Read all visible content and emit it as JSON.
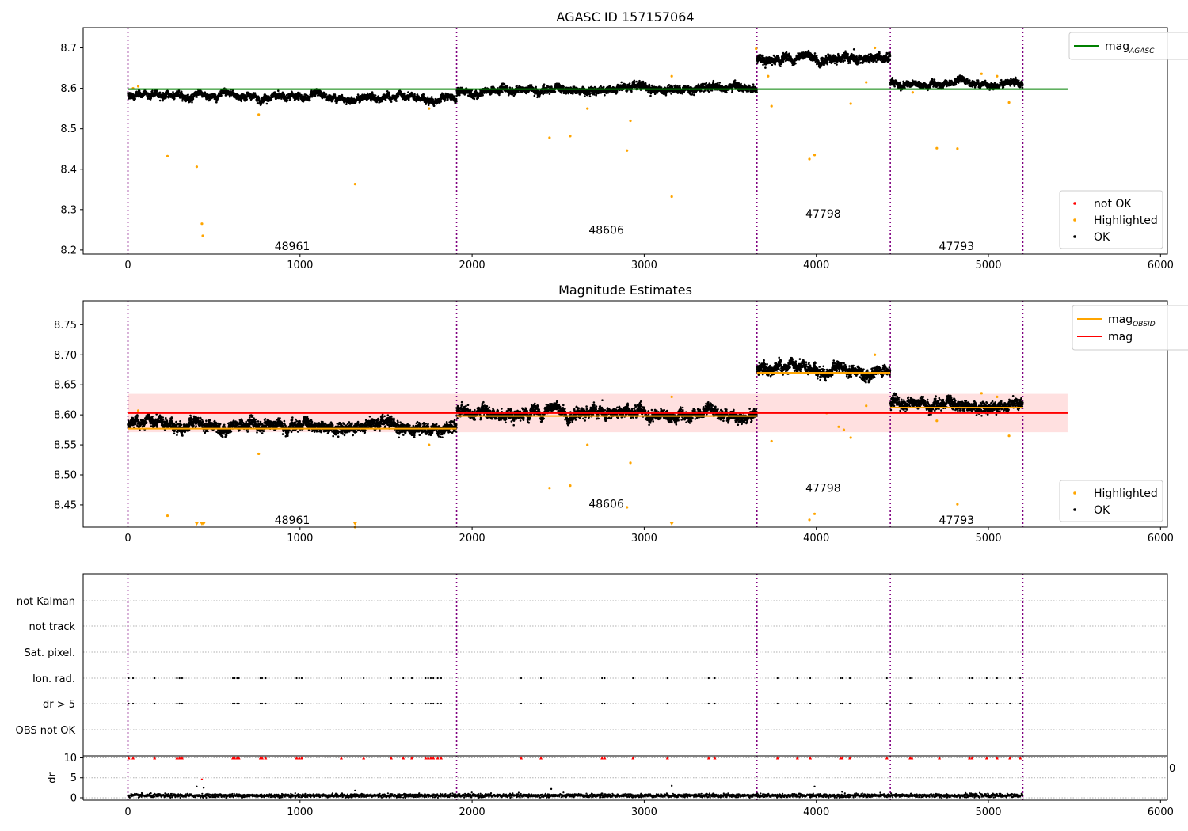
{
  "chart_data": [
    {
      "type": "scatter",
      "title": "AGASC ID 157157064",
      "xlim": [
        -260,
        6040
      ],
      "ylim": [
        8.19,
        8.75
      ],
      "xticks": [
        0,
        1000,
        2000,
        3000,
        4000,
        5000,
        6000
      ],
      "yticks": [
        8.2,
        8.3,
        8.4,
        8.5,
        8.6,
        8.7
      ],
      "obs_boundaries": [
        0,
        1910,
        3655,
        4430,
        5200
      ],
      "obsids": [
        {
          "label": "48961",
          "x": 955,
          "y": 8.21
        },
        {
          "label": "48606",
          "x": 2780,
          "y": 8.25
        },
        {
          "label": "47798",
          "x": 4040,
          "y": 8.29
        },
        {
          "label": "47793",
          "x": 4815,
          "y": 8.21
        }
      ],
      "mag_agasc": {
        "value": 8.598,
        "x_range": [
          0,
          5460
        ],
        "color": "#008000"
      },
      "segments": [
        {
          "x": [
            0,
            1910
          ],
          "start": 8.585,
          "end": 8.572,
          "noise": 0.006
        },
        {
          "x": [
            1910,
            3655
          ],
          "start": 8.592,
          "end": 8.603,
          "noise": 0.007
        },
        {
          "x": [
            3655,
            4430
          ],
          "start": 8.672,
          "end": 8.672,
          "noise": 0.008
        },
        {
          "x": [
            4430,
            5200
          ],
          "start": 8.612,
          "end": 8.612,
          "noise": 0.006
        }
      ],
      "highlighted": [
        [
          230,
          8.432
        ],
        [
          400,
          8.406
        ],
        [
          430,
          8.265
        ],
        [
          435,
          8.235
        ],
        [
          1320,
          8.363
        ],
        [
          2450,
          8.478
        ],
        [
          2570,
          8.482
        ],
        [
          2900,
          8.446
        ],
        [
          2920,
          8.52
        ],
        [
          3160,
          8.332
        ],
        [
          3960,
          8.425
        ],
        [
          3990,
          8.435
        ],
        [
          4700,
          8.452
        ],
        [
          760,
          8.535
        ],
        [
          1750,
          8.55
        ],
        [
          2670,
          8.55
        ],
        [
          3740,
          8.556
        ],
        [
          4200,
          8.562
        ],
        [
          4290,
          8.615
        ],
        [
          5120,
          8.565
        ],
        [
          30,
          8.6
        ],
        [
          60,
          8.605
        ],
        [
          3160,
          8.63
        ],
        [
          3650,
          8.698
        ],
        [
          4340,
          8.7
        ],
        [
          4960,
          8.636
        ],
        [
          5050,
          8.63
        ],
        [
          4560,
          8.59
        ],
        [
          4820,
          8.451
        ],
        [
          3720,
          8.63
        ]
      ],
      "legend_lines": [
        {
          "name": "mag",
          "subscript": "AGASC",
          "color": "#008000"
        }
      ],
      "legend_points": [
        {
          "name": "not OK",
          "color": "#ff0000"
        },
        {
          "name": "Highlighted",
          "color": "#ffa500"
        },
        {
          "name": "OK",
          "color": "#000000"
        }
      ]
    },
    {
      "type": "scatter",
      "title": "Magnitude Estimates",
      "xlim": [
        -260,
        6040
      ],
      "ylim": [
        8.413,
        8.79
      ],
      "xticks": [
        0,
        1000,
        2000,
        3000,
        4000,
        5000,
        6000
      ],
      "yticks": [
        8.45,
        8.5,
        8.55,
        8.6,
        8.65,
        8.7,
        8.75
      ],
      "obs_boundaries": [
        0,
        1910,
        3655,
        4430,
        5200
      ],
      "obsids": [
        {
          "label": "48961",
          "x": 955,
          "y": 8.425
        },
        {
          "label": "48606",
          "x": 2780,
          "y": 8.452
        },
        {
          "label": "47798",
          "x": 4040,
          "y": 8.478
        },
        {
          "label": "47793",
          "x": 4815,
          "y": 8.425
        }
      ],
      "mag": {
        "value": 8.603,
        "band": [
          8.571,
          8.635
        ],
        "x_range": [
          0,
          5460
        ],
        "color": "#ff0000"
      },
      "mag_obsid": [
        {
          "x": [
            0,
            1910
          ],
          "value": 8.577
        },
        {
          "x": [
            1910,
            3655
          ],
          "value": 8.598
        },
        {
          "x": [
            3655,
            4430
          ],
          "value": 8.67
        },
        {
          "x": [
            4430,
            5200
          ],
          "value": 8.612
        }
      ],
      "highlighted": [
        [
          230,
          8.432
        ],
        [
          1320,
          8.413
        ],
        [
          2450,
          8.478
        ],
        [
          2570,
          8.482
        ],
        [
          2900,
          8.446
        ],
        [
          2920,
          8.52
        ],
        [
          3990,
          8.435
        ],
        [
          3960,
          8.425
        ],
        [
          4820,
          8.451
        ],
        [
          760,
          8.535
        ],
        [
          1750,
          8.55
        ],
        [
          2670,
          8.55
        ],
        [
          3740,
          8.556
        ],
        [
          4200,
          8.562
        ],
        [
          4290,
          8.615
        ],
        [
          5120,
          8.565
        ],
        [
          4130,
          8.58
        ],
        [
          4160,
          8.575
        ],
        [
          4060,
          8.603
        ],
        [
          60,
          8.607
        ],
        [
          4340,
          8.7
        ],
        [
          4960,
          8.636
        ],
        [
          5050,
          8.63
        ],
        [
          4700,
          8.59
        ],
        [
          3160,
          8.63
        ]
      ],
      "clipped_low": [
        400,
        430,
        440,
        1320,
        3160
      ],
      "legend_lines": [
        {
          "name": "mag",
          "subscript": "OBSID",
          "color": "#ffa500"
        },
        {
          "name": "mag",
          "subscript": "",
          "color": "#ff0000"
        }
      ],
      "legend_points": [
        {
          "name": "Highlighted",
          "color": "#ffa500"
        },
        {
          "name": "OK",
          "color": "#000000"
        }
      ]
    },
    {
      "type": "scatter",
      "title": "",
      "xlim": [
        -260,
        6040
      ],
      "flag_labels": [
        "not Kalman",
        "not track",
        "Sat. pixel.",
        "Ion. rad.",
        "dr > 5",
        "OBS not OK"
      ],
      "flag_events_x": [
        5,
        30,
        155,
        285,
        300,
        315,
        610,
        620,
        635,
        645,
        770,
        780,
        800,
        980,
        995,
        1010,
        1240,
        1370,
        1530,
        1600,
        1650,
        1730,
        1745,
        1760,
        1775,
        1800,
        1820,
        2285,
        2400,
        2755,
        2770,
        2935,
        3135,
        3375,
        3410,
        3775,
        3890,
        3965,
        4140,
        4150,
        4195,
        4410,
        4545,
        4555,
        4715,
        4890,
        4905,
        4990,
        5050,
        5125,
        5185
      ],
      "obs_boundaries": [
        0,
        1910,
        3655,
        4430,
        5200
      ],
      "dr": {
        "ylabel": "dr",
        "yticks": [
          0,
          5,
          10
        ],
        "ylim": [
          -0.6,
          10.5
        ],
        "outliers": [
          [
            400,
            2.8
          ],
          [
            430,
            4.6
          ],
          [
            440,
            2.5
          ],
          [
            2460,
            2.2
          ],
          [
            3160,
            3.0
          ],
          [
            3990,
            2.8
          ],
          [
            1320,
            1.8
          ],
          [
            4150,
            1.5
          ]
        ],
        "clipped_value": 10,
        "x_end": 5200
      },
      "stray_tick": "0"
    }
  ]
}
